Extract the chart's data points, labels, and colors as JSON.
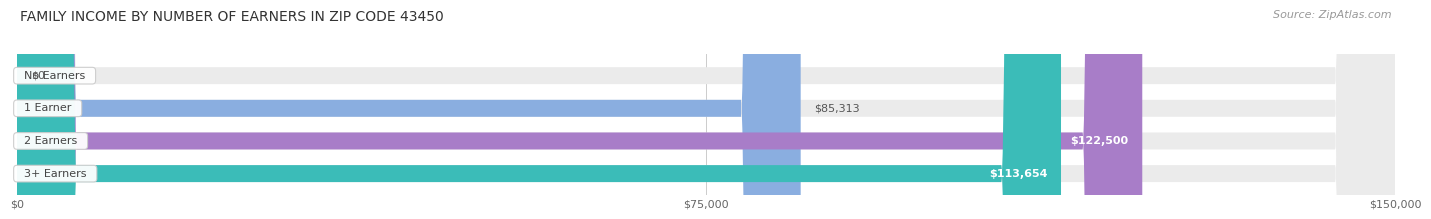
{
  "title": "FAMILY INCOME BY NUMBER OF EARNERS IN ZIP CODE 43450",
  "source": "Source: ZipAtlas.com",
  "categories": [
    "No Earners",
    "1 Earner",
    "2 Earners",
    "3+ Earners"
  ],
  "values": [
    0,
    85313,
    122500,
    113654
  ],
  "labels": [
    "$0",
    "$85,313",
    "$122,500",
    "$113,654"
  ],
  "bar_colors": [
    "#f4a0a8",
    "#8aaee0",
    "#a87dc8",
    "#3bbcb8"
  ],
  "bar_bg_color": "#ebebeb",
  "xlim": [
    0,
    150000
  ],
  "xticks": [
    0,
    75000,
    150000
  ],
  "xtick_labels": [
    "$0",
    "$75,000",
    "$150,000"
  ],
  "title_fontsize": 10,
  "source_fontsize": 8,
  "bar_height": 0.52,
  "background_color": "#ffffff",
  "fig_width": 14.06,
  "fig_height": 2.34
}
